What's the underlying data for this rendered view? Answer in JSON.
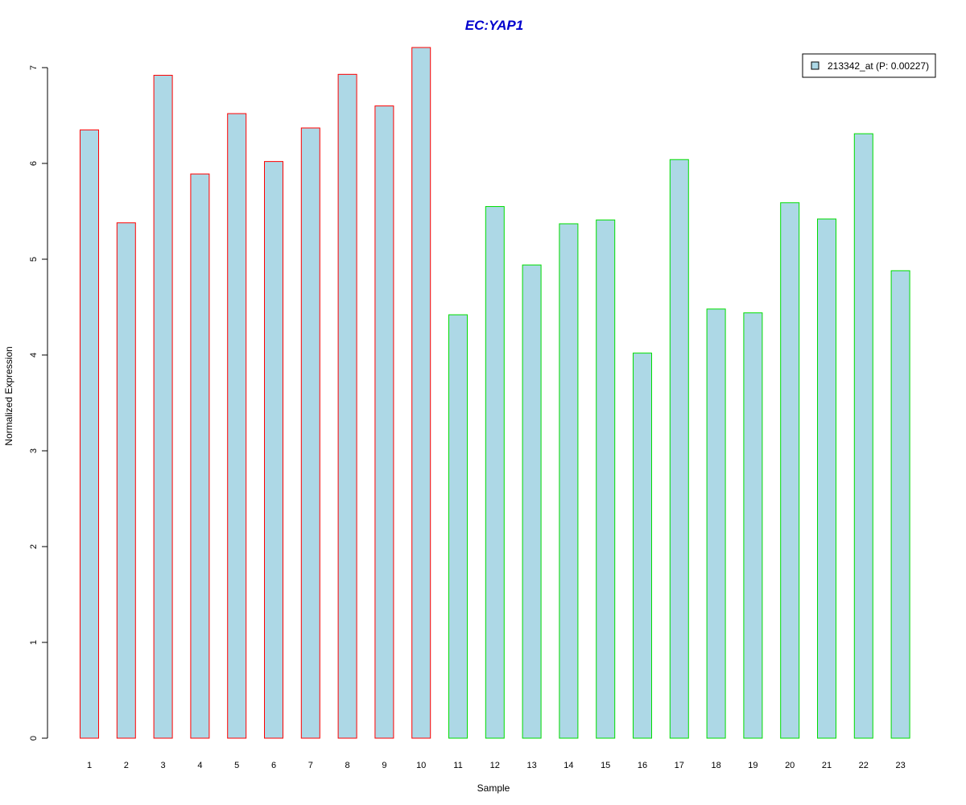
{
  "chart_data": {
    "type": "bar",
    "title": "EC:YAP1",
    "xlabel": "Sample",
    "ylabel": "Normalized Expression",
    "categories": [
      "1",
      "2",
      "3",
      "4",
      "5",
      "6",
      "7",
      "8",
      "9",
      "10",
      "11",
      "12",
      "13",
      "14",
      "15",
      "16",
      "17",
      "18",
      "19",
      "20",
      "21",
      "22",
      "23"
    ],
    "values": [
      6.35,
      5.38,
      6.92,
      5.89,
      6.52,
      6.02,
      6.37,
      6.93,
      6.6,
      7.21,
      4.42,
      5.55,
      4.94,
      5.37,
      5.41,
      4.02,
      6.04,
      4.48,
      4.44,
      5.59,
      5.42,
      6.31,
      4.88
    ],
    "ylim": [
      0,
      7
    ],
    "yticks": [
      "0",
      "1",
      "2",
      "3",
      "4",
      "5",
      "6",
      "7"
    ],
    "groups": [
      1,
      1,
      1,
      1,
      1,
      1,
      1,
      1,
      1,
      1,
      2,
      2,
      2,
      2,
      2,
      2,
      2,
      2,
      2,
      2,
      2,
      2,
      2
    ],
    "legend": {
      "label": "213342_at (P: 0.00227)",
      "position": "top-right"
    },
    "colors": {
      "title": "#0000CD",
      "bar_fill": "#ADD8E6",
      "group1_border": "#FF0000",
      "group2_border": "#00DD00"
    },
    "grid": false
  }
}
